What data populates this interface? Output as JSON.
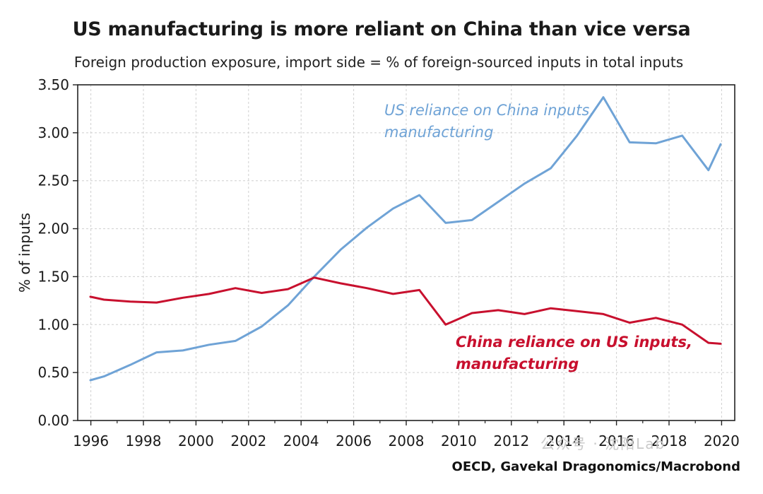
{
  "chart_data": {
    "type": "line",
    "title": "US manufacturing is more reliant on China than vice versa",
    "subtitle": "Foreign production exposure, import side = % of foreign-sourced inputs in total inputs",
    "xlabel": "",
    "ylabel": "% of inputs",
    "xlim": [
      1995.5,
      2020.5
    ],
    "ylim": [
      0,
      3.5
    ],
    "x_tick_labels": [
      "1996",
      "1998",
      "2000",
      "2002",
      "2004",
      "2006",
      "2008",
      "2010",
      "2012",
      "2014",
      "2016",
      "2018",
      "2020"
    ],
    "y_tick_labels": [
      "0.00",
      "0.50",
      "1.00",
      "1.50",
      "2.00",
      "2.50",
      "3.00",
      "3.50"
    ],
    "grid": true,
    "x": [
      1995,
      1996,
      1997,
      1998,
      1999,
      2000,
      2001,
      2002,
      2003,
      2004,
      2005,
      2006,
      2007,
      2008,
      2009,
      2010,
      2011,
      2012,
      2013,
      2014,
      2015,
      2016,
      2017,
      2018,
      2019,
      2020
    ],
    "series": [
      {
        "name": "US reliance on China inputs, manufacturing",
        "label_lines": [
          "US reliance on China inputs,",
          "manufacturing"
        ],
        "color": "#6fa3d6",
        "values": [
          0.42,
          0.46,
          0.58,
          0.71,
          0.73,
          0.79,
          0.83,
          0.98,
          1.2,
          1.5,
          1.78,
          2.01,
          2.21,
          2.35,
          2.06,
          2.09,
          2.28,
          2.47,
          2.63,
          2.97,
          3.37,
          2.9,
          2.89,
          2.97,
          2.61,
          2.88
        ]
      },
      {
        "name": "China reliance on US inputs, manufacturing",
        "label_lines": [
          "China reliance on US inputs,",
          "manufacturing"
        ],
        "color": "#c8102e",
        "values": [
          1.29,
          1.26,
          1.24,
          1.23,
          1.28,
          1.32,
          1.38,
          1.33,
          1.37,
          1.49,
          1.43,
          1.38,
          1.32,
          1.36,
          1.0,
          1.12,
          1.15,
          1.11,
          1.17,
          1.14,
          1.11,
          1.02,
          1.07,
          1.0,
          0.81,
          0.8
        ]
      }
    ],
    "source": "OECD, Gavekal Dragonomics/Macrobond"
  },
  "watermark": "公众号 · 沈阳Lab"
}
